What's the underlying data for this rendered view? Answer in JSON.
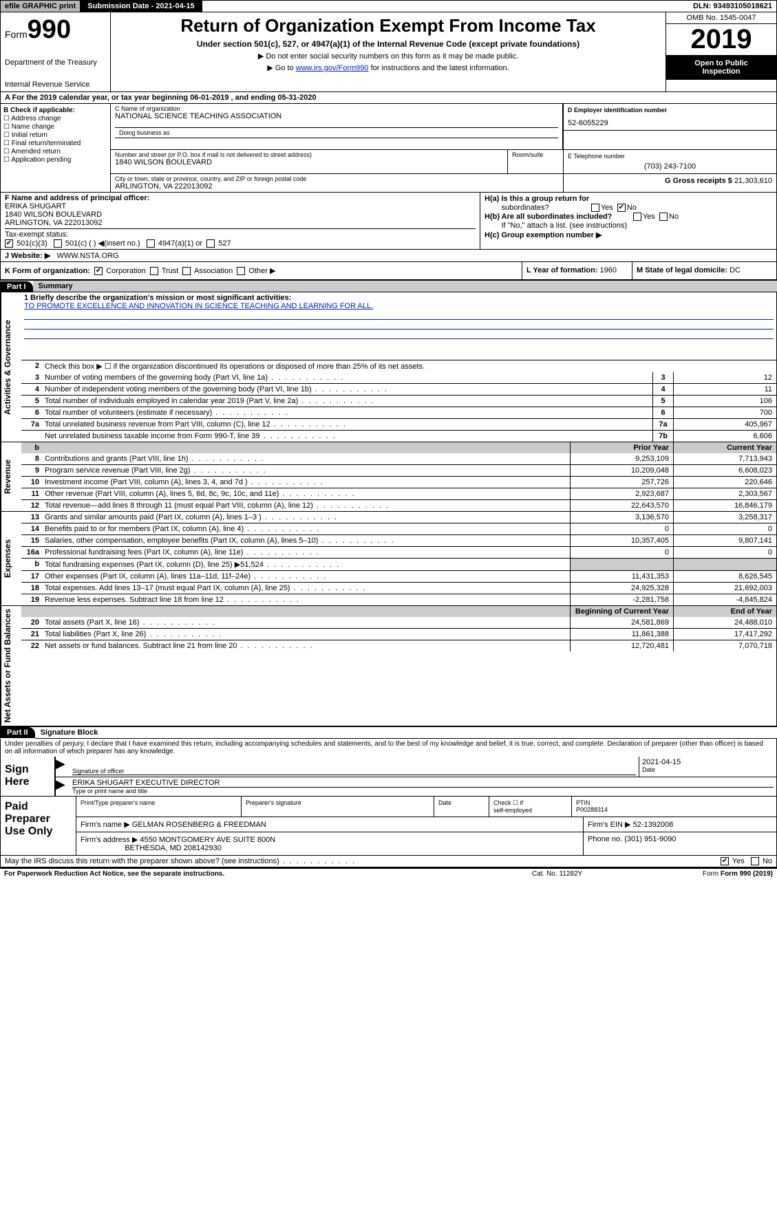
{
  "topbar": {
    "efile": "efile GRAPHIC print",
    "submission": "Submission Date - 2021-04-15",
    "dln": "DLN: 93493105018621"
  },
  "header": {
    "form_word": "Form",
    "form_num": "990",
    "dept": "Department of the Treasury",
    "irs": "Internal Revenue Service",
    "title": "Return of Organization Exempt From Income Tax",
    "subtitle": "Under section 501(c), 527, or 4947(a)(1) of the Internal Revenue Code (except private foundations)",
    "instr1": "▶ Do not enter social security numbers on this form as it may be made public.",
    "instr2_prefix": "▶ Go to ",
    "instr2_link": "www.irs.gov/Form990",
    "instr2_suffix": " for instructions and the latest information.",
    "omb": "OMB No. 1545-0047",
    "year": "2019",
    "inspect1": "Open to Public",
    "inspect2": "Inspection"
  },
  "period": "A For the 2019 calendar year, or tax year beginning 06-01-2019     , and ending 05-31-2020",
  "section_b": {
    "label": "B Check if applicable:",
    "opts": [
      "Address change",
      "Name change",
      "Initial return",
      "Final return/terminated",
      "Amended return",
      "Application pending"
    ]
  },
  "section_c": {
    "name_label": "C Name of organization",
    "name": "NATIONAL SCIENCE TEACHING ASSOCIATION",
    "dba_label": "Doing business as",
    "addr_label": "Number and street (or P.O. box if mail is not delivered to street address)",
    "addr": "1840 WILSON BOULEVARD",
    "room_label": "Room/suite",
    "city_label": "City or town, state or province, country, and ZIP or foreign postal code",
    "city": "ARLINGTON, VA  222013092"
  },
  "section_d": {
    "label": "D Employer identification number",
    "value": "52-6055229"
  },
  "section_e": {
    "label": "E Telephone number",
    "value": "(703) 243-7100"
  },
  "section_g": {
    "label": "G Gross receipts $ ",
    "value": "21,303,610"
  },
  "section_f": {
    "label": "F  Name and address of principal officer:",
    "name": "ERIKA SHUGART",
    "addr": "1840 WILSON BOULEVARD",
    "city": "ARLINGTON, VA  222013092"
  },
  "section_h": {
    "a_label": "H(a)  Is this a group return for",
    "a_sub": "subordinates?",
    "a_yes": "Yes",
    "a_no": "No",
    "b_label": "H(b)  Are all subordinates included?",
    "b_note": "If \"No,\" attach a list. (see instructions)",
    "c_label": "H(c)  Group exemption number ▶"
  },
  "section_i": {
    "label": "Tax-exempt status:",
    "opt1": "501(c)(3)",
    "opt2": "501(c) (   ) ◀(insert no.)",
    "opt3": "4947(a)(1) or",
    "opt4": "527"
  },
  "section_j": {
    "label": "J     Website: ▶",
    "value": "WWW.NSTA.ORG"
  },
  "section_k": {
    "label": "K Form of organization:",
    "opts": [
      "Corporation",
      "Trust",
      "Association",
      "Other ▶"
    ]
  },
  "section_l": {
    "label": "L Year of formation: ",
    "value": "1960"
  },
  "section_m": {
    "label": "M State of legal domicile: ",
    "value": "DC"
  },
  "parts": {
    "p1": "Part I",
    "p1_title": "Summary",
    "p2": "Part II",
    "p2_title": "Signature Block"
  },
  "side_labels": {
    "gov": "Activities & Governance",
    "rev": "Revenue",
    "exp": "Expenses",
    "net": "Net Assets or Fund Balances"
  },
  "summary": {
    "mission_label": "1   Briefly describe the organization's mission or most significant activities:",
    "mission": "TO PROMOTE EXCELLENCE AND INNOVATION IN SCIENCE TEACHING AND LEARNING FOR ALL.",
    "line2": "Check this box ▶ ☐  if the organization discontinued its operations or disposed of more than 25% of its net assets.",
    "lines_single": [
      {
        "n": "3",
        "desc": "Number of voting members of the governing body (Part VI, line 1a)",
        "box": "3",
        "val": "12"
      },
      {
        "n": "4",
        "desc": "Number of independent voting members of the governing body (Part VI, line 1b)",
        "box": "4",
        "val": "11"
      },
      {
        "n": "5",
        "desc": "Total number of individuals employed in calendar year 2019 (Part V, line 2a)",
        "box": "5",
        "val": "106"
      },
      {
        "n": "6",
        "desc": "Total number of volunteers (estimate if necessary)",
        "box": "6",
        "val": "700"
      },
      {
        "n": "7a",
        "desc": "Total unrelated business revenue from Part VIII, column (C), line 12",
        "box": "7a",
        "val": "405,967"
      },
      {
        "n": "",
        "desc": "Net unrelated business taxable income from Form 990-T, line 39",
        "box": "7b",
        "val": "6,606"
      }
    ],
    "col_hdr": {
      "b": "b",
      "prior": "Prior Year",
      "current": "Current Year"
    },
    "revenue": [
      {
        "n": "8",
        "desc": "Contributions and grants (Part VIII, line 1h)",
        "prior": "9,253,109",
        "curr": "7,713,943"
      },
      {
        "n": "9",
        "desc": "Program service revenue (Part VIII, line 2g)",
        "prior": "10,209,048",
        "curr": "6,608,023"
      },
      {
        "n": "10",
        "desc": "Investment income (Part VIII, column (A), lines 3, 4, and 7d )",
        "prior": "257,726",
        "curr": "220,646"
      },
      {
        "n": "11",
        "desc": "Other revenue (Part VIII, column (A), lines 5, 6d, 8c, 9c, 10c, and 11e)",
        "prior": "2,923,687",
        "curr": "2,303,567"
      },
      {
        "n": "12",
        "desc": "Total revenue—add lines 8 through 11 (must equal Part VIII, column (A), line 12)",
        "prior": "22,643,570",
        "curr": "16,846,179"
      }
    ],
    "expenses": [
      {
        "n": "13",
        "desc": "Grants and similar amounts paid (Part IX, column (A), lines 1–3 )",
        "prior": "3,136,570",
        "curr": "3,258,317"
      },
      {
        "n": "14",
        "desc": "Benefits paid to or for members (Part IX, column (A), line 4)",
        "prior": "0",
        "curr": "0"
      },
      {
        "n": "15",
        "desc": "Salaries, other compensation, employee benefits (Part IX, column (A), lines 5–10)",
        "prior": "10,357,405",
        "curr": "9,807,141"
      },
      {
        "n": "16a",
        "desc": "Professional fundraising fees (Part IX, column (A), line 11e)",
        "prior": "0",
        "curr": "0"
      },
      {
        "n": "b",
        "desc": "Total fundraising expenses (Part IX, column (D), line 25) ▶51,524",
        "prior": "",
        "curr": "",
        "shaded": true
      },
      {
        "n": "17",
        "desc": "Other expenses (Part IX, column (A), lines 11a–11d, 11f–24e)",
        "prior": "11,431,353",
        "curr": "8,626,545"
      },
      {
        "n": "18",
        "desc": "Total expenses. Add lines 13–17 (must equal Part IX, column (A), line 25)",
        "prior": "24,925,328",
        "curr": "21,692,003"
      },
      {
        "n": "19",
        "desc": "Revenue less expenses. Subtract line 18 from line 12",
        "prior": "-2,281,758",
        "curr": "-4,845,824"
      }
    ],
    "net_hdr": {
      "begin": "Beginning of Current Year",
      "end": "End of Year"
    },
    "net": [
      {
        "n": "20",
        "desc": "Total assets (Part X, line 16)",
        "prior": "24,581,869",
        "curr": "24,488,010"
      },
      {
        "n": "21",
        "desc": "Total liabilities (Part X, line 26)",
        "prior": "11,861,388",
        "curr": "17,417,292"
      },
      {
        "n": "22",
        "desc": "Net assets or fund balances. Subtract line 21 from line 20",
        "prior": "12,720,481",
        "curr": "7,070,718"
      }
    ]
  },
  "sig": {
    "penalty": "Under penalties of perjury, I declare that I have examined this return, including accompanying schedules and statements, and to the best of my knowledge and belief, it is true, correct, and complete. Declaration of preparer (other than officer) is based on all information of which preparer has any knowledge.",
    "sign_here": "Sign Here",
    "sig_officer": "Signature of officer",
    "date_val": "2021-04-15",
    "date_label": "Date",
    "name": "ERIKA SHUGART  EXECUTIVE DIRECTOR",
    "name_label": "Type or print name and title"
  },
  "prep": {
    "title": "Paid Preparer Use Only",
    "h1": "Print/Type preparer's name",
    "h2": "Preparer's signature",
    "h3": "Date",
    "h4_a": "Check ☐ if",
    "h4_b": "self-employed",
    "h5": "PTIN",
    "ptin": "P00288314",
    "firm_label": "Firm's name      ▶",
    "firm": "GELMAN ROSENBERG & FREEDMAN",
    "ein_label": "Firm's EIN ▶",
    "ein": "52-1392008",
    "addr_label": "Firm's address ▶",
    "addr1": "4550 MONTGOMERY AVE SUITE 800N",
    "addr2": "BETHESDA, MD  208142930",
    "phone_label": "Phone no. ",
    "phone": "(301) 951-9090"
  },
  "discuss": {
    "text": "May the IRS discuss this return with the preparer shown above? (see instructions)",
    "yes": "Yes",
    "no": "No"
  },
  "footer": {
    "left": "For Paperwork Reduction Act Notice, see the separate instructions.",
    "mid": "Cat. No. 11282Y",
    "right": "Form 990 (2019)"
  }
}
